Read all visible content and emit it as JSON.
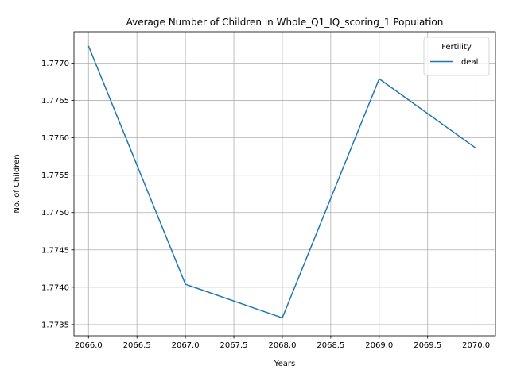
{
  "chart_data": {
    "type": "line",
    "title": "Average Number of Children in Whole_Q1_IQ_scoring_1 Population",
    "xlabel": "Years",
    "ylabel": "No. of Children",
    "x": [
      2066,
      2067,
      2068,
      2069,
      2070
    ],
    "series": [
      {
        "name": "Ideal",
        "values": [
          1.77723,
          1.77404,
          1.77359,
          1.77679,
          1.77586
        ],
        "color": "#1f77b4"
      }
    ],
    "xlim": [
      2065.85,
      2070.2
    ],
    "ylim": [
      1.77335,
      1.77742
    ],
    "x_ticks": [
      "2066.0",
      "2066.5",
      "2067.0",
      "2067.5",
      "2068.0",
      "2068.5",
      "2069.0",
      "2069.5",
      "2070.0"
    ],
    "y_ticks": [
      "1.7735",
      "1.7740",
      "1.7745",
      "1.7750",
      "1.7755",
      "1.7760",
      "1.7765",
      "1.7770"
    ],
    "grid": true,
    "legend": {
      "title": "Fertility",
      "placement": "top-right"
    }
  }
}
